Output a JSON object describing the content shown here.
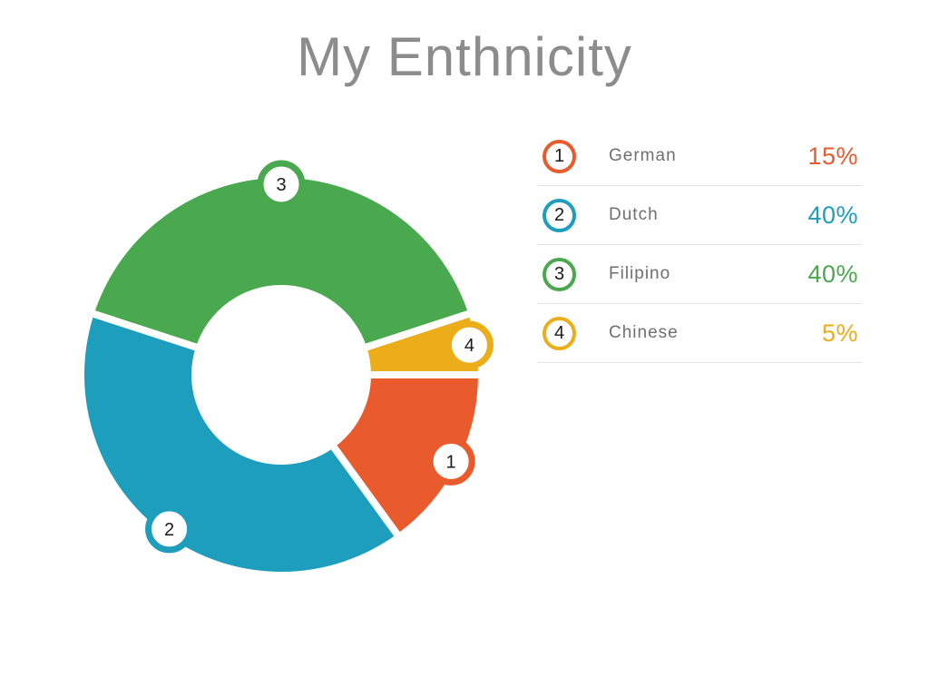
{
  "title": "My Enthnicity",
  "chart_data": {
    "type": "donut",
    "title": "My Enthnicity",
    "start_angle_deg": 0,
    "direction": "clockwise",
    "hole_ratio": 0.44,
    "gap_color": "#ffffff",
    "legend_position": "right",
    "segments": [
      {
        "index": "1",
        "label": "German",
        "percent": 15,
        "percent_label": "15%",
        "color": "#E95A2D"
      },
      {
        "index": "2",
        "label": "Dutch",
        "percent": 40,
        "percent_label": "40%",
        "color": "#1D9EBD"
      },
      {
        "index": "3",
        "label": "Filipino",
        "percent": 40,
        "percent_label": "40%",
        "color": "#4AA94E"
      },
      {
        "index": "4",
        "label": "Chinese",
        "percent": 5,
        "percent_label": "5%",
        "color": "#ECAD1A"
      }
    ]
  },
  "colors": {
    "title_text": "#8C8C8C",
    "legend_label": "#6F6F6F",
    "badge_number": "#1B1B1B",
    "divider": "#E3E3E3",
    "background": "#FFFFFF"
  }
}
